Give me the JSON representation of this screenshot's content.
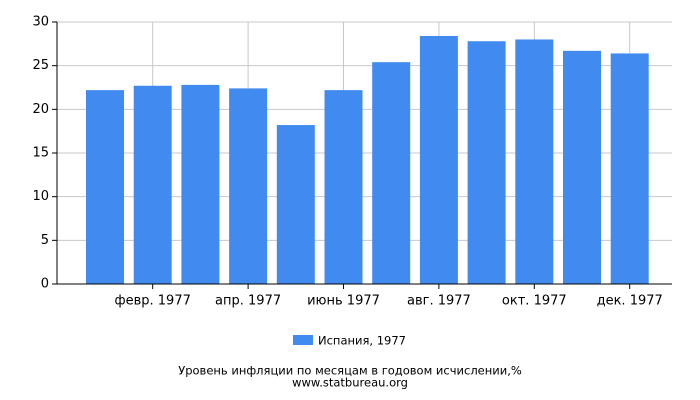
{
  "chart_data": {
    "type": "bar",
    "title": "Уровень инфляции по месяцам в годовом исчислении,%",
    "subtitle": "www.statbureau.org",
    "categories": [
      null,
      "февр. 1977",
      null,
      "апр. 1977",
      null,
      "июнь 1977",
      null,
      "авг. 1977",
      null,
      "окт. 1977",
      null,
      "дек. 1977"
    ],
    "series": [
      {
        "name": "Испания, 1977",
        "color": "#418bf0",
        "values": [
          22.2,
          22.7,
          22.8,
          22.4,
          18.2,
          22.2,
          25.4,
          28.4,
          27.8,
          28.0,
          26.7,
          26.4
        ]
      }
    ],
    "ylim": [
      0,
      30
    ],
    "yticks": [
      0,
      5,
      10,
      15,
      20,
      25,
      30
    ],
    "grid": true
  }
}
